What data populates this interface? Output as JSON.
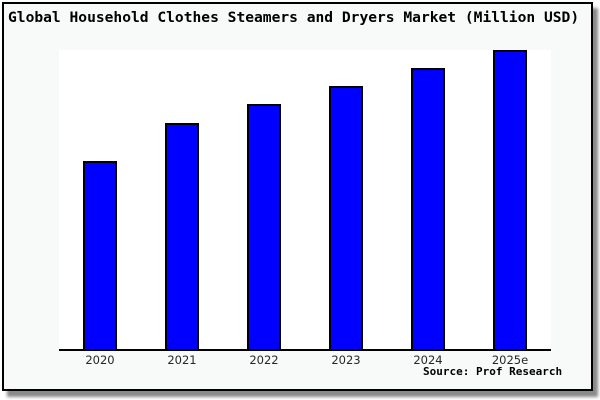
{
  "title": "Global Household Clothes Steamers and Dryers Market (Million USD)",
  "source_credit": "Source: Prof Research",
  "colors": {
    "bar_fill": "#0000ff",
    "bar_border": "#000000",
    "frame_border": "#000000",
    "canvas_background": "#f8f9f9",
    "plot_background": "#ffffff",
    "shadow": "#8a8a8a",
    "tick_label": "#262626"
  },
  "chart_data": {
    "type": "bar",
    "title": "Global Household Clothes Steamers and Dryers Market (Million USD)",
    "categories": [
      "2020",
      "2021",
      "2022",
      "2023",
      "2024",
      "2025e"
    ],
    "values": [
      63,
      75.5,
      82,
      88,
      94,
      100
    ],
    "values_note": "no y-axis scale shown; bar heights estimated relative to 2025e = 100",
    "xlabel": "",
    "ylabel": "",
    "ylim": [
      0,
      100.7
    ],
    "grid": false,
    "legend": false,
    "source": "Source: Prof Research"
  }
}
